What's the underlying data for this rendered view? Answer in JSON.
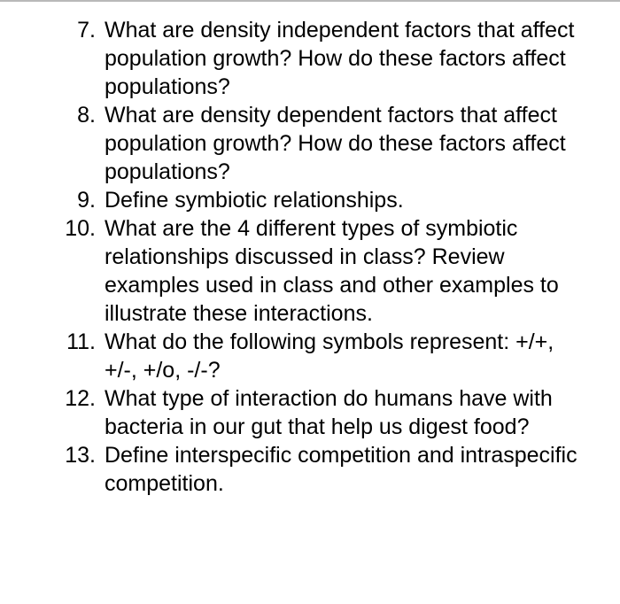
{
  "document": {
    "background_color": "#ffffff",
    "text_color": "#000000",
    "top_rule_color": "#b9b9b9",
    "font_family": "Helvetica Neue, Helvetica, Arial, sans-serif",
    "font_size_pt": 19,
    "line_height": 1.28,
    "list_start": 7,
    "questions": [
      "What are density independent factors that affect population growth? How do these factors affect populations?",
      "What are density dependent factors that affect population growth? How do these factors affect populations?",
      "Define symbiotic relationships.",
      "What are the 4 different types of symbiotic relationships discussed in class? Review examples used in class and other examples to illustrate these interactions.",
      "What do the following symbols represent: +/+, +/-, +/o, -/-?",
      "What type of interaction do humans have with bacteria in our gut that help us digest food?",
      "Define interspecific competition and intraspecific competition."
    ]
  }
}
